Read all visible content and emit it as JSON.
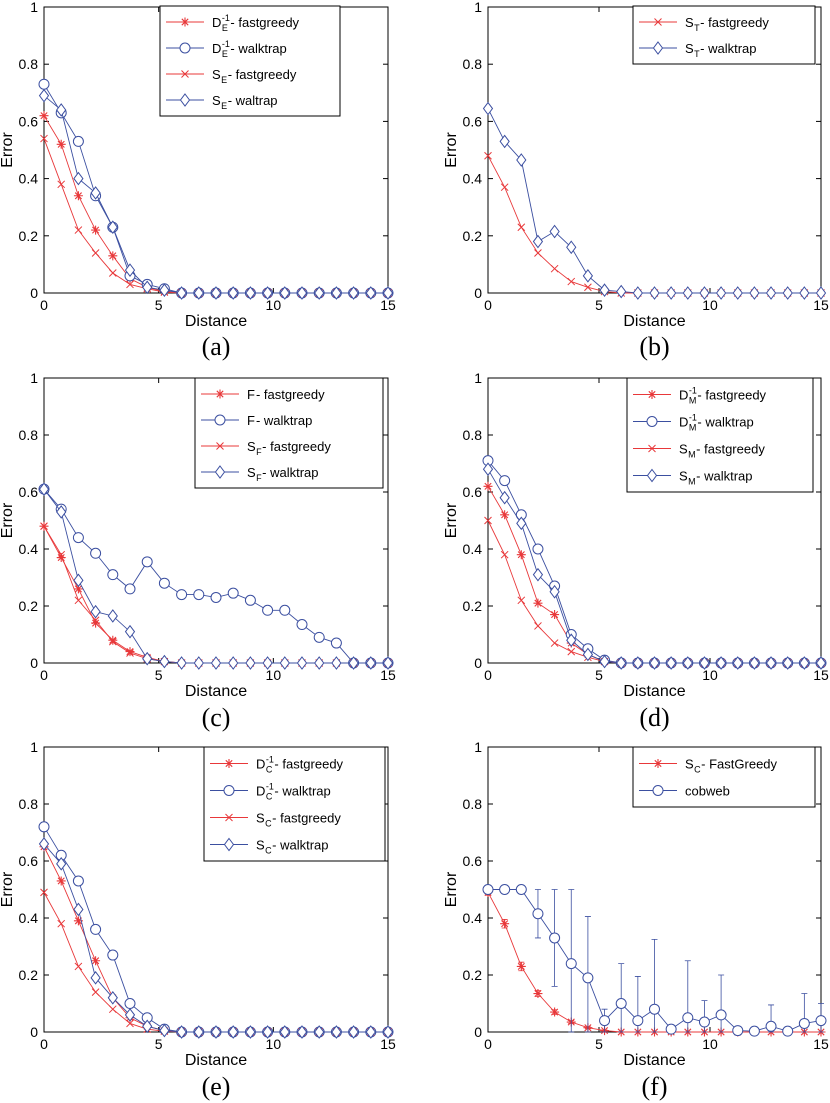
{
  "colors": {
    "red": "#e8383a",
    "blue": "#3b4fa0",
    "axis": "#000000"
  },
  "chart_data": [
    {
      "type": "line",
      "caption": "(a)",
      "xlabel": "Distance",
      "ylabel": "Error",
      "xlim": [
        0,
        15
      ],
      "ylim": [
        0,
        1
      ],
      "xticks": [
        "0",
        "5",
        "10",
        "15"
      ],
      "yticks": [
        "0",
        "0.2",
        "0.4",
        "0.6",
        "0.8",
        "1"
      ],
      "x": [
        0,
        0.75,
        1.5,
        2.25,
        3,
        3.75,
        4.5,
        5.25,
        6,
        6.75,
        7.5,
        8.25,
        9,
        9.75,
        10.5,
        11.25,
        12,
        12.75,
        13.5,
        14.25,
        15
      ],
      "series": [
        {
          "base": "D",
          "sub": "E",
          "sup": "-1",
          "suffix": " - fastgreedy",
          "color": "red",
          "marker": "asterisk",
          "values": [
            0.62,
            0.52,
            0.34,
            0.22,
            0.13,
            0.05,
            0.02,
            0.005,
            0,
            0,
            0,
            0,
            0,
            0,
            0,
            0,
            0,
            0,
            0,
            0,
            0
          ]
        },
        {
          "base": "D",
          "sub": "E",
          "sup": "-1",
          "suffix": " - walktrap",
          "color": "blue",
          "marker": "circle",
          "values": [
            0.73,
            0.63,
            0.53,
            0.34,
            0.23,
            0.06,
            0.03,
            0.015,
            0,
            0,
            0,
            0,
            0,
            0,
            0,
            0,
            0,
            0,
            0,
            0,
            0
          ]
        },
        {
          "base": "S",
          "sub": "E",
          "sup": "",
          "suffix": " - fastgreedy",
          "color": "red",
          "marker": "x",
          "values": [
            0.54,
            0.38,
            0.22,
            0.14,
            0.07,
            0.03,
            0.015,
            0.003,
            0,
            0,
            0,
            0,
            0,
            0,
            0,
            0,
            0,
            0,
            0,
            0,
            0
          ]
        },
        {
          "base": "S",
          "sub": "E",
          "sup": "",
          "suffix": " - waltrap",
          "color": "blue",
          "marker": "diamond",
          "values": [
            0.69,
            0.64,
            0.4,
            0.35,
            0.23,
            0.08,
            0.02,
            0.01,
            0,
            0,
            0,
            0,
            0,
            0,
            0,
            0,
            0,
            0,
            0,
            0,
            0
          ]
        }
      ]
    },
    {
      "type": "line",
      "caption": "(b)",
      "xlabel": "Distance",
      "ylabel": "Error",
      "xlim": [
        0,
        15
      ],
      "ylim": [
        0,
        1
      ],
      "xticks": [
        "0",
        "5",
        "10",
        "15"
      ],
      "yticks": [
        "0",
        "0.2",
        "0.4",
        "0.6",
        "0.8",
        "1"
      ],
      "x": [
        0,
        0.75,
        1.5,
        2.25,
        3,
        3.75,
        4.5,
        5.25,
        6,
        6.75,
        7.5,
        8.25,
        9,
        9.75,
        10.5,
        11.25,
        12,
        12.75,
        13.5,
        14.25,
        15
      ],
      "series": [
        {
          "base": "S",
          "sub": "T",
          "sup": "",
          "suffix": " - fastgreedy",
          "color": "red",
          "marker": "x",
          "values": [
            0.48,
            0.37,
            0.23,
            0.14,
            0.085,
            0.04,
            0.02,
            0.005,
            0,
            0,
            0,
            0,
            0,
            0,
            0,
            0,
            0,
            0,
            0,
            0,
            0
          ]
        },
        {
          "base": "S",
          "sub": "T",
          "sup": "",
          "suffix": " - walktrap",
          "color": "blue",
          "marker": "diamond",
          "values": [
            0.645,
            0.53,
            0.465,
            0.18,
            0.215,
            0.16,
            0.06,
            0.01,
            0.005,
            0,
            0,
            0,
            0,
            0,
            0,
            0,
            0,
            0,
            0,
            0,
            0
          ]
        }
      ]
    },
    {
      "type": "line",
      "caption": "(c)",
      "xlabel": "Distance",
      "ylabel": "Error",
      "xlim": [
        0,
        15
      ],
      "ylim": [
        0,
        1
      ],
      "xticks": [
        "0",
        "5",
        "10",
        "15"
      ],
      "yticks": [
        "0",
        "0.2",
        "0.4",
        "0.6",
        "0.8",
        "1"
      ],
      "x": [
        0,
        0.75,
        1.5,
        2.25,
        3,
        3.75,
        4.5,
        5.25,
        6,
        6.75,
        7.5,
        8.25,
        9,
        9.75,
        10.5,
        11.25,
        12,
        12.75,
        13.5,
        14.25,
        15
      ],
      "series": [
        {
          "base": "F",
          "sub": "",
          "sup": "",
          "suffix": " - fastgreedy",
          "color": "red",
          "marker": "asterisk",
          "values": [
            0.48,
            0.37,
            0.26,
            0.14,
            0.08,
            0.04,
            0.02,
            0.005,
            0,
            0,
            0,
            0,
            0,
            0,
            0,
            0,
            0,
            0,
            0,
            0,
            0
          ]
        },
        {
          "base": "F",
          "sub": "",
          "sup": "",
          "suffix": " - walktrap",
          "color": "blue",
          "marker": "circle",
          "values": [
            0.61,
            0.54,
            0.44,
            0.385,
            0.31,
            0.26,
            0.355,
            0.28,
            0.24,
            0.24,
            0.23,
            0.245,
            0.22,
            0.185,
            0.185,
            0.135,
            0.09,
            0.07,
            0,
            0,
            0
          ]
        },
        {
          "base": "S",
          "sub": "F",
          "sup": "",
          "suffix": " - fastgreedy",
          "color": "red",
          "marker": "x",
          "values": [
            0.48,
            0.38,
            0.22,
            0.15,
            0.075,
            0.035,
            0.015,
            0.005,
            0,
            0,
            0,
            0,
            0,
            0,
            0,
            0,
            0,
            0,
            0,
            0,
            0
          ]
        },
        {
          "base": "S",
          "sub": "F",
          "sup": "",
          "suffix": " - walktrap",
          "color": "blue",
          "marker": "diamond",
          "values": [
            0.61,
            0.53,
            0.29,
            0.18,
            0.165,
            0.11,
            0.015,
            0.005,
            0,
            0,
            0,
            0,
            0,
            0,
            0,
            0,
            0,
            0,
            0,
            0,
            0
          ]
        }
      ]
    },
    {
      "type": "line",
      "caption": "(d)",
      "xlabel": "Distance",
      "ylabel": "Error",
      "xlim": [
        0,
        15
      ],
      "ylim": [
        0,
        1
      ],
      "xticks": [
        "0",
        "5",
        "10",
        "15"
      ],
      "yticks": [
        "0",
        "0.2",
        "0.4",
        "0.6",
        "0.8",
        "1"
      ],
      "x": [
        0,
        0.75,
        1.5,
        2.25,
        3,
        3.75,
        4.5,
        5.25,
        6,
        6.75,
        7.5,
        8.25,
        9,
        9.75,
        10.5,
        11.25,
        12,
        12.75,
        13.5,
        14.25,
        15
      ],
      "series": [
        {
          "base": "D",
          "sub": "M",
          "sup": "-1",
          "suffix": " - fastgreedy",
          "color": "red",
          "marker": "asterisk",
          "values": [
            0.62,
            0.52,
            0.38,
            0.21,
            0.17,
            0.07,
            0.03,
            0.005,
            0,
            0,
            0,
            0,
            0,
            0,
            0,
            0,
            0,
            0,
            0,
            0,
            0
          ]
        },
        {
          "base": "D",
          "sub": "M",
          "sup": "-1",
          "suffix": " - walktrap",
          "color": "blue",
          "marker": "circle",
          "values": [
            0.71,
            0.64,
            0.52,
            0.4,
            0.27,
            0.1,
            0.05,
            0.01,
            0,
            0,
            0,
            0,
            0,
            0,
            0,
            0,
            0,
            0,
            0,
            0,
            0
          ]
        },
        {
          "base": "S",
          "sub": "M",
          "sup": "",
          "suffix": " - fastgreedy",
          "color": "red",
          "marker": "x",
          "values": [
            0.5,
            0.38,
            0.22,
            0.13,
            0.07,
            0.04,
            0.02,
            0.005,
            0,
            0,
            0,
            0,
            0,
            0,
            0,
            0,
            0,
            0,
            0,
            0,
            0
          ]
        },
        {
          "base": "S",
          "sub": "M",
          "sup": "",
          "suffix": " - walktrap",
          "color": "blue",
          "marker": "diamond",
          "values": [
            0.68,
            0.58,
            0.49,
            0.31,
            0.25,
            0.08,
            0.03,
            0.005,
            0,
            0,
            0,
            0,
            0,
            0,
            0,
            0,
            0,
            0,
            0,
            0,
            0
          ]
        }
      ]
    },
    {
      "type": "line",
      "caption": "(e)",
      "xlabel": "Distance",
      "ylabel": "Error",
      "xlim": [
        0,
        15
      ],
      "ylim": [
        0,
        1
      ],
      "xticks": [
        "0",
        "5",
        "10",
        "15"
      ],
      "yticks": [
        "0",
        "0.2",
        "0.4",
        "0.6",
        "0.8",
        "1"
      ],
      "x": [
        0,
        0.75,
        1.5,
        2.25,
        3,
        3.75,
        4.5,
        5.25,
        6,
        6.75,
        7.5,
        8.25,
        9,
        9.75,
        10.5,
        11.25,
        12,
        12.75,
        13.5,
        14.25,
        15
      ],
      "series": [
        {
          "base": "D",
          "sub": "C",
          "sup": "-1",
          "suffix": " - fastgreedy",
          "color": "red",
          "marker": "asterisk",
          "values": [
            0.65,
            0.53,
            0.39,
            0.25,
            0.12,
            0.05,
            0.02,
            0.005,
            0,
            0,
            0,
            0,
            0,
            0,
            0,
            0,
            0,
            0,
            0,
            0,
            0
          ]
        },
        {
          "base": "D",
          "sub": "C",
          "sup": "-1",
          "suffix": " - walktrap",
          "color": "blue",
          "marker": "circle",
          "values": [
            0.72,
            0.62,
            0.53,
            0.36,
            0.27,
            0.1,
            0.05,
            0.01,
            0,
            0,
            0,
            0,
            0,
            0,
            0,
            0,
            0,
            0,
            0,
            0,
            0
          ]
        },
        {
          "base": "S",
          "sub": "C",
          "sup": "",
          "suffix": " - fastgreedy",
          "color": "red",
          "marker": "x",
          "values": [
            0.49,
            0.38,
            0.23,
            0.14,
            0.08,
            0.03,
            0.01,
            0.003,
            0,
            0,
            0,
            0,
            0,
            0,
            0,
            0,
            0,
            0,
            0,
            0,
            0
          ]
        },
        {
          "base": "S",
          "sub": "C",
          "sup": "",
          "suffix": " - walktrap",
          "color": "blue",
          "marker": "diamond",
          "values": [
            0.66,
            0.59,
            0.43,
            0.19,
            0.12,
            0.06,
            0.02,
            0.005,
            0,
            0,
            0,
            0,
            0,
            0,
            0,
            0,
            0,
            0,
            0,
            0,
            0
          ]
        }
      ]
    },
    {
      "type": "line",
      "caption": "(f)",
      "xlabel": "Distance",
      "ylabel": "Error",
      "xlim": [
        0,
        15
      ],
      "ylim": [
        0,
        1
      ],
      "xticks": [
        "0",
        "5",
        "10",
        "15"
      ],
      "yticks": [
        "0",
        "0.2",
        "0.4",
        "0.6",
        "0.8",
        "1"
      ],
      "x": [
        0,
        0.75,
        1.5,
        2.25,
        3,
        3.75,
        4.5,
        5.25,
        6,
        6.75,
        7.5,
        8.25,
        9,
        9.75,
        10.5,
        11.25,
        12,
        12.75,
        13.5,
        14.25,
        15
      ],
      "series": [
        {
          "base": "S",
          "sub": "C",
          "sup": "",
          "suffix": " - FastGreedy",
          "color": "red",
          "marker": "asterisk",
          "values": [
            0.49,
            0.38,
            0.23,
            0.135,
            0.07,
            0.035,
            0.015,
            0.005,
            0,
            0,
            0,
            0,
            0,
            0,
            0,
            0,
            0,
            0,
            0,
            0,
            0
          ],
          "err": [
            0.01,
            0.015,
            0.015,
            0.01,
            0.008,
            0.005,
            0.003,
            0.002,
            0,
            0,
            0,
            0,
            0,
            0,
            0,
            0,
            0,
            0,
            0,
            0,
            0
          ]
        },
        {
          "base": "cobweb",
          "sub": "",
          "sup": "",
          "suffix": "",
          "color": "blue",
          "marker": "circle",
          "values": [
            0.5,
            0.5,
            0.5,
            0.415,
            0.33,
            0.24,
            0.19,
            0.04,
            0.1,
            0.04,
            0.08,
            0.01,
            0.05,
            0.035,
            0.06,
            0.005,
            0.003,
            0.02,
            0.003,
            0.03,
            0.04
          ],
          "err": [
            0,
            0,
            0,
            0.085,
            0.17,
            0.26,
            0.215,
            0.04,
            0.14,
            0.155,
            0.245,
            0.01,
            0.2,
            0.075,
            0.14,
            0.005,
            0.003,
            0.075,
            0.003,
            0.105,
            0.06
          ]
        }
      ]
    }
  ]
}
